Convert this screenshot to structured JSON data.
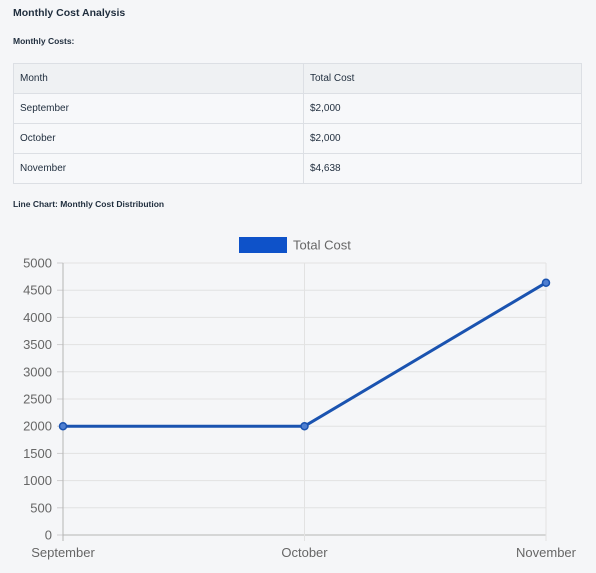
{
  "page": {
    "title": "Monthly Cost Analysis",
    "costs_label": "Monthly Costs:",
    "chart_label": "Line Chart: Monthly Cost Distribution"
  },
  "table": {
    "headers": [
      "Month",
      "Total Cost"
    ],
    "rows": [
      [
        "September",
        "$2,000"
      ],
      [
        "October",
        "$2,000"
      ],
      [
        "November",
        "$4,638"
      ]
    ]
  },
  "chart_data": {
    "type": "line",
    "categories": [
      "September",
      "October",
      "November"
    ],
    "series": [
      {
        "name": "Total Cost",
        "values": [
          2000,
          2000,
          4638
        ],
        "color": "#1a53b0"
      }
    ],
    "ylim": [
      0,
      5000
    ],
    "y_ticks": [
      "0",
      "500",
      "1000",
      "1500",
      "2000",
      "2500",
      "3000",
      "3500",
      "4000",
      "4500",
      "5000"
    ],
    "grid": true,
    "legend": "top",
    "legend_color": "#0e52c9"
  }
}
